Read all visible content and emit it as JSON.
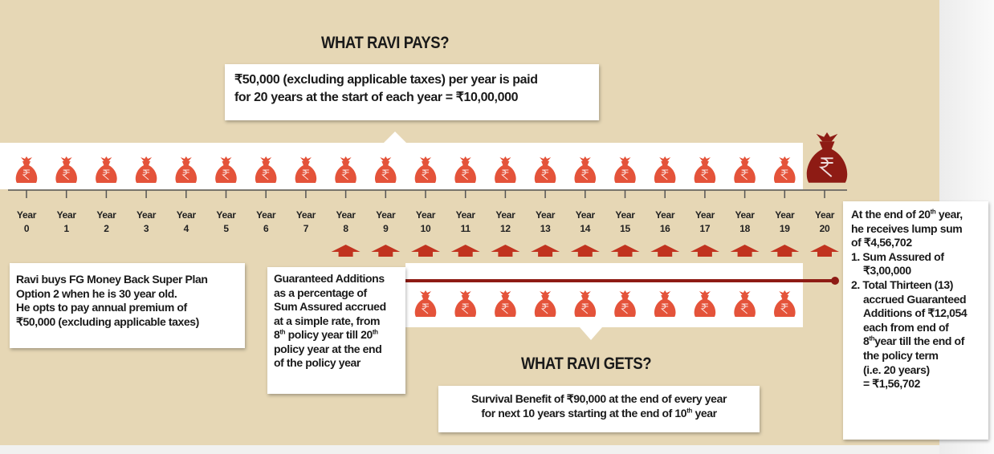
{
  "pays_title": "WHAT RAVI PAYS?",
  "pays_box": {
    "lines": [
      [
        "₹50,000 (excluding applicable taxes) per year is paid"
      ],
      [
        "for 20 years at the start of each year  =  ₹10,00,000"
      ]
    ]
  },
  "timeline": {
    "year_label": "Year",
    "years": [
      0,
      1,
      2,
      3,
      4,
      5,
      6,
      7,
      8,
      9,
      10,
      11,
      12,
      13,
      14,
      15,
      16,
      17,
      18,
      19,
      20
    ]
  },
  "left_box": {
    "lines": [
      [
        "Ravi buys FG Money Back Super Plan"
      ],
      [
        "Option 2 when he is 30 year old."
      ],
      [
        "He opts to pay annual premium of"
      ],
      [
        "₹50,000 (excluding applicable taxes)"
      ]
    ]
  },
  "ga_box": {
    "lines": [
      [
        "Guaranteed Additions"
      ],
      [
        "as a percentage of"
      ],
      [
        "Sum Assured accrued"
      ],
      [
        "at a simple rate, from"
      ],
      [
        "8",
        "th",
        " policy year till 20",
        "th"
      ],
      [
        "policy year at the end"
      ],
      [
        "of the policy year"
      ]
    ]
  },
  "gets_title": "WHAT RAVI GETS?",
  "gets_box": {
    "lines": [
      [
        "Survival Benefit of ₹90,000 at the end of every year"
      ],
      [
        "for next 10 years starting at the end of 10",
        "th",
        " year"
      ]
    ]
  },
  "right_box": {
    "lines": [
      [
        "At the end of 20",
        "th",
        " year,"
      ],
      [
        "he receives lump sum"
      ],
      [
        "of ₹4,56,702"
      ],
      [
        "1. Sum Assured of"
      ],
      [
        "₹3,00,000"
      ],
      [
        "2. Total Thirteen (13)"
      ],
      [
        "accrued Guaranteed"
      ],
      [
        "Additions of ₹12,054"
      ],
      [
        "each from end of"
      ],
      [
        "8",
        "th",
        "year till the end of"
      ],
      [
        "the policy term"
      ],
      [
        "(i.e. 20 years)"
      ],
      [
        "= ₹1,56,702"
      ]
    ]
  }
}
